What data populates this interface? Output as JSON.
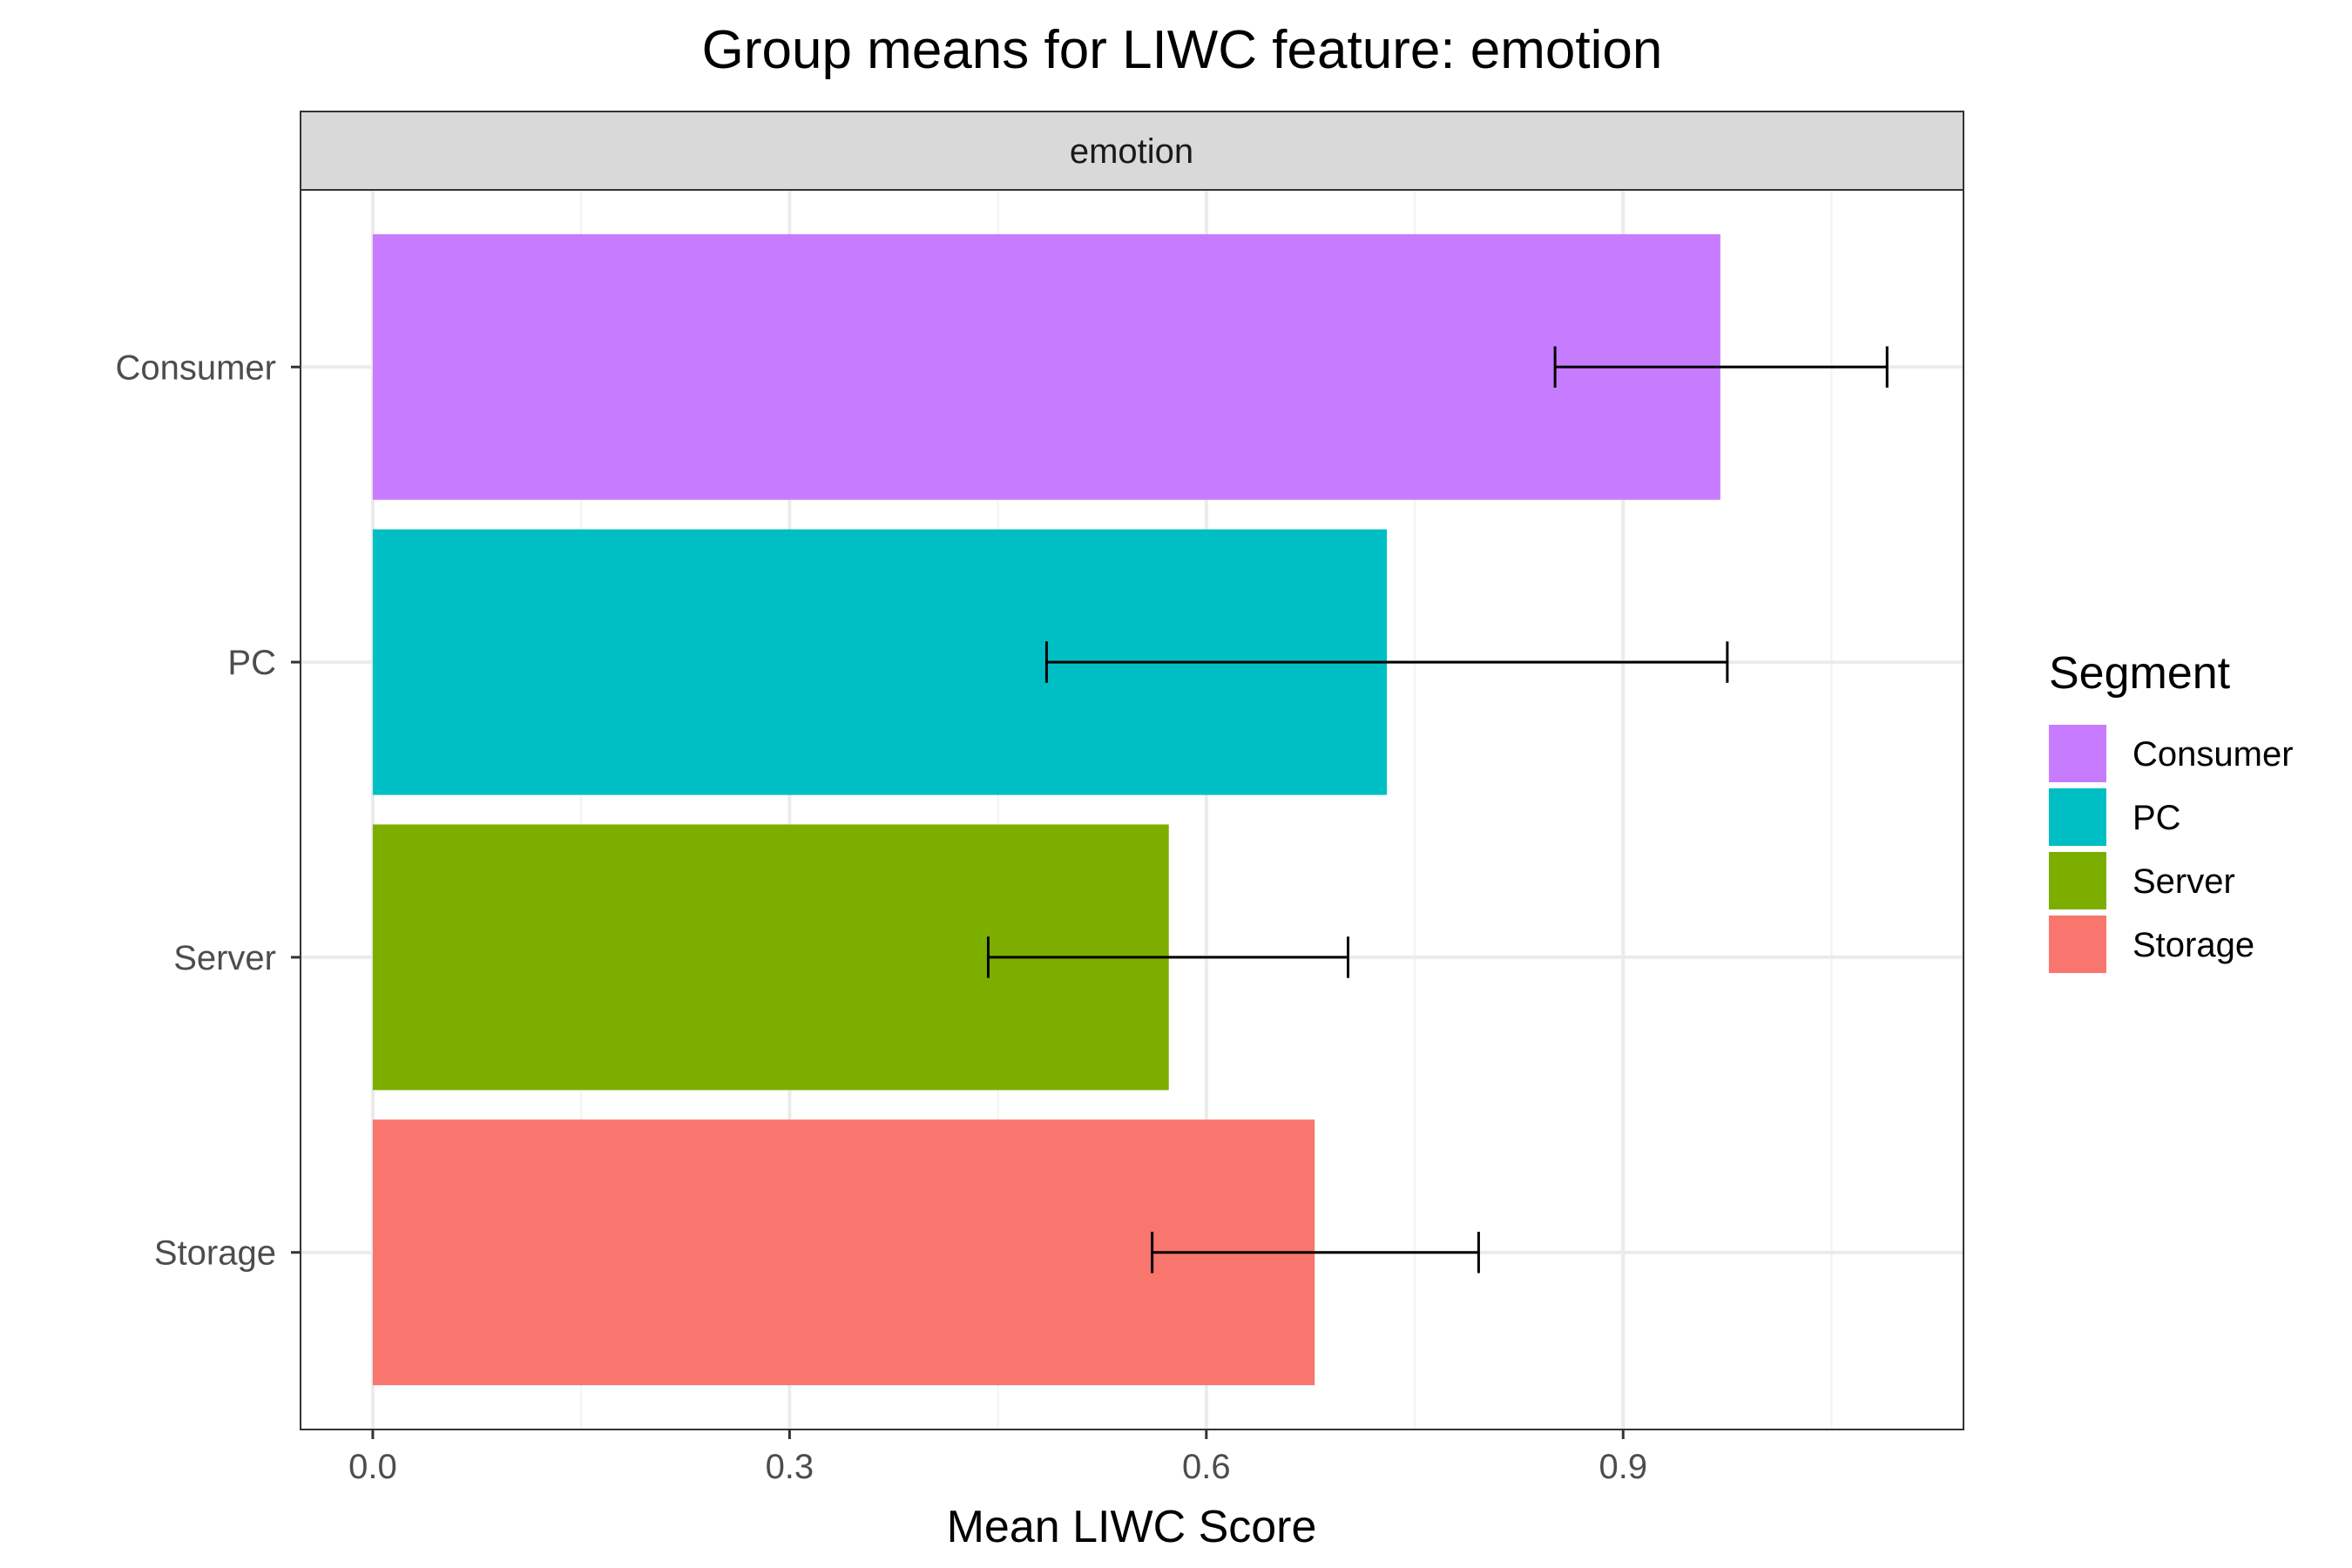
{
  "chart_data": {
    "type": "bar",
    "orientation": "horizontal",
    "title": "Group means for LIWC feature: emotion",
    "facet_label": "emotion",
    "xlabel": "Mean LIWC Score",
    "ylabel": "",
    "xlim": [
      -0.052,
      1.145
    ],
    "x_ticks": [
      "0.0",
      "0.3",
      "0.6",
      "0.9"
    ],
    "x_tick_values": [
      0.0,
      0.3,
      0.6,
      0.9
    ],
    "categories": [
      "Consumer",
      "PC",
      "Server",
      "Storage"
    ],
    "values": [
      0.97,
      0.73,
      0.573,
      0.678
    ],
    "error_low": [
      0.851,
      0.485,
      0.443,
      0.561
    ],
    "error_high": [
      1.09,
      0.975,
      0.702,
      0.796
    ],
    "colors": [
      "#C77CFF",
      "#00BFC4",
      "#7CAE00",
      "#F8766D"
    ],
    "grid": true,
    "legend": {
      "title": "Segment",
      "position": "right",
      "entries": [
        "Consumer",
        "PC",
        "Server",
        "Storage"
      ]
    }
  }
}
